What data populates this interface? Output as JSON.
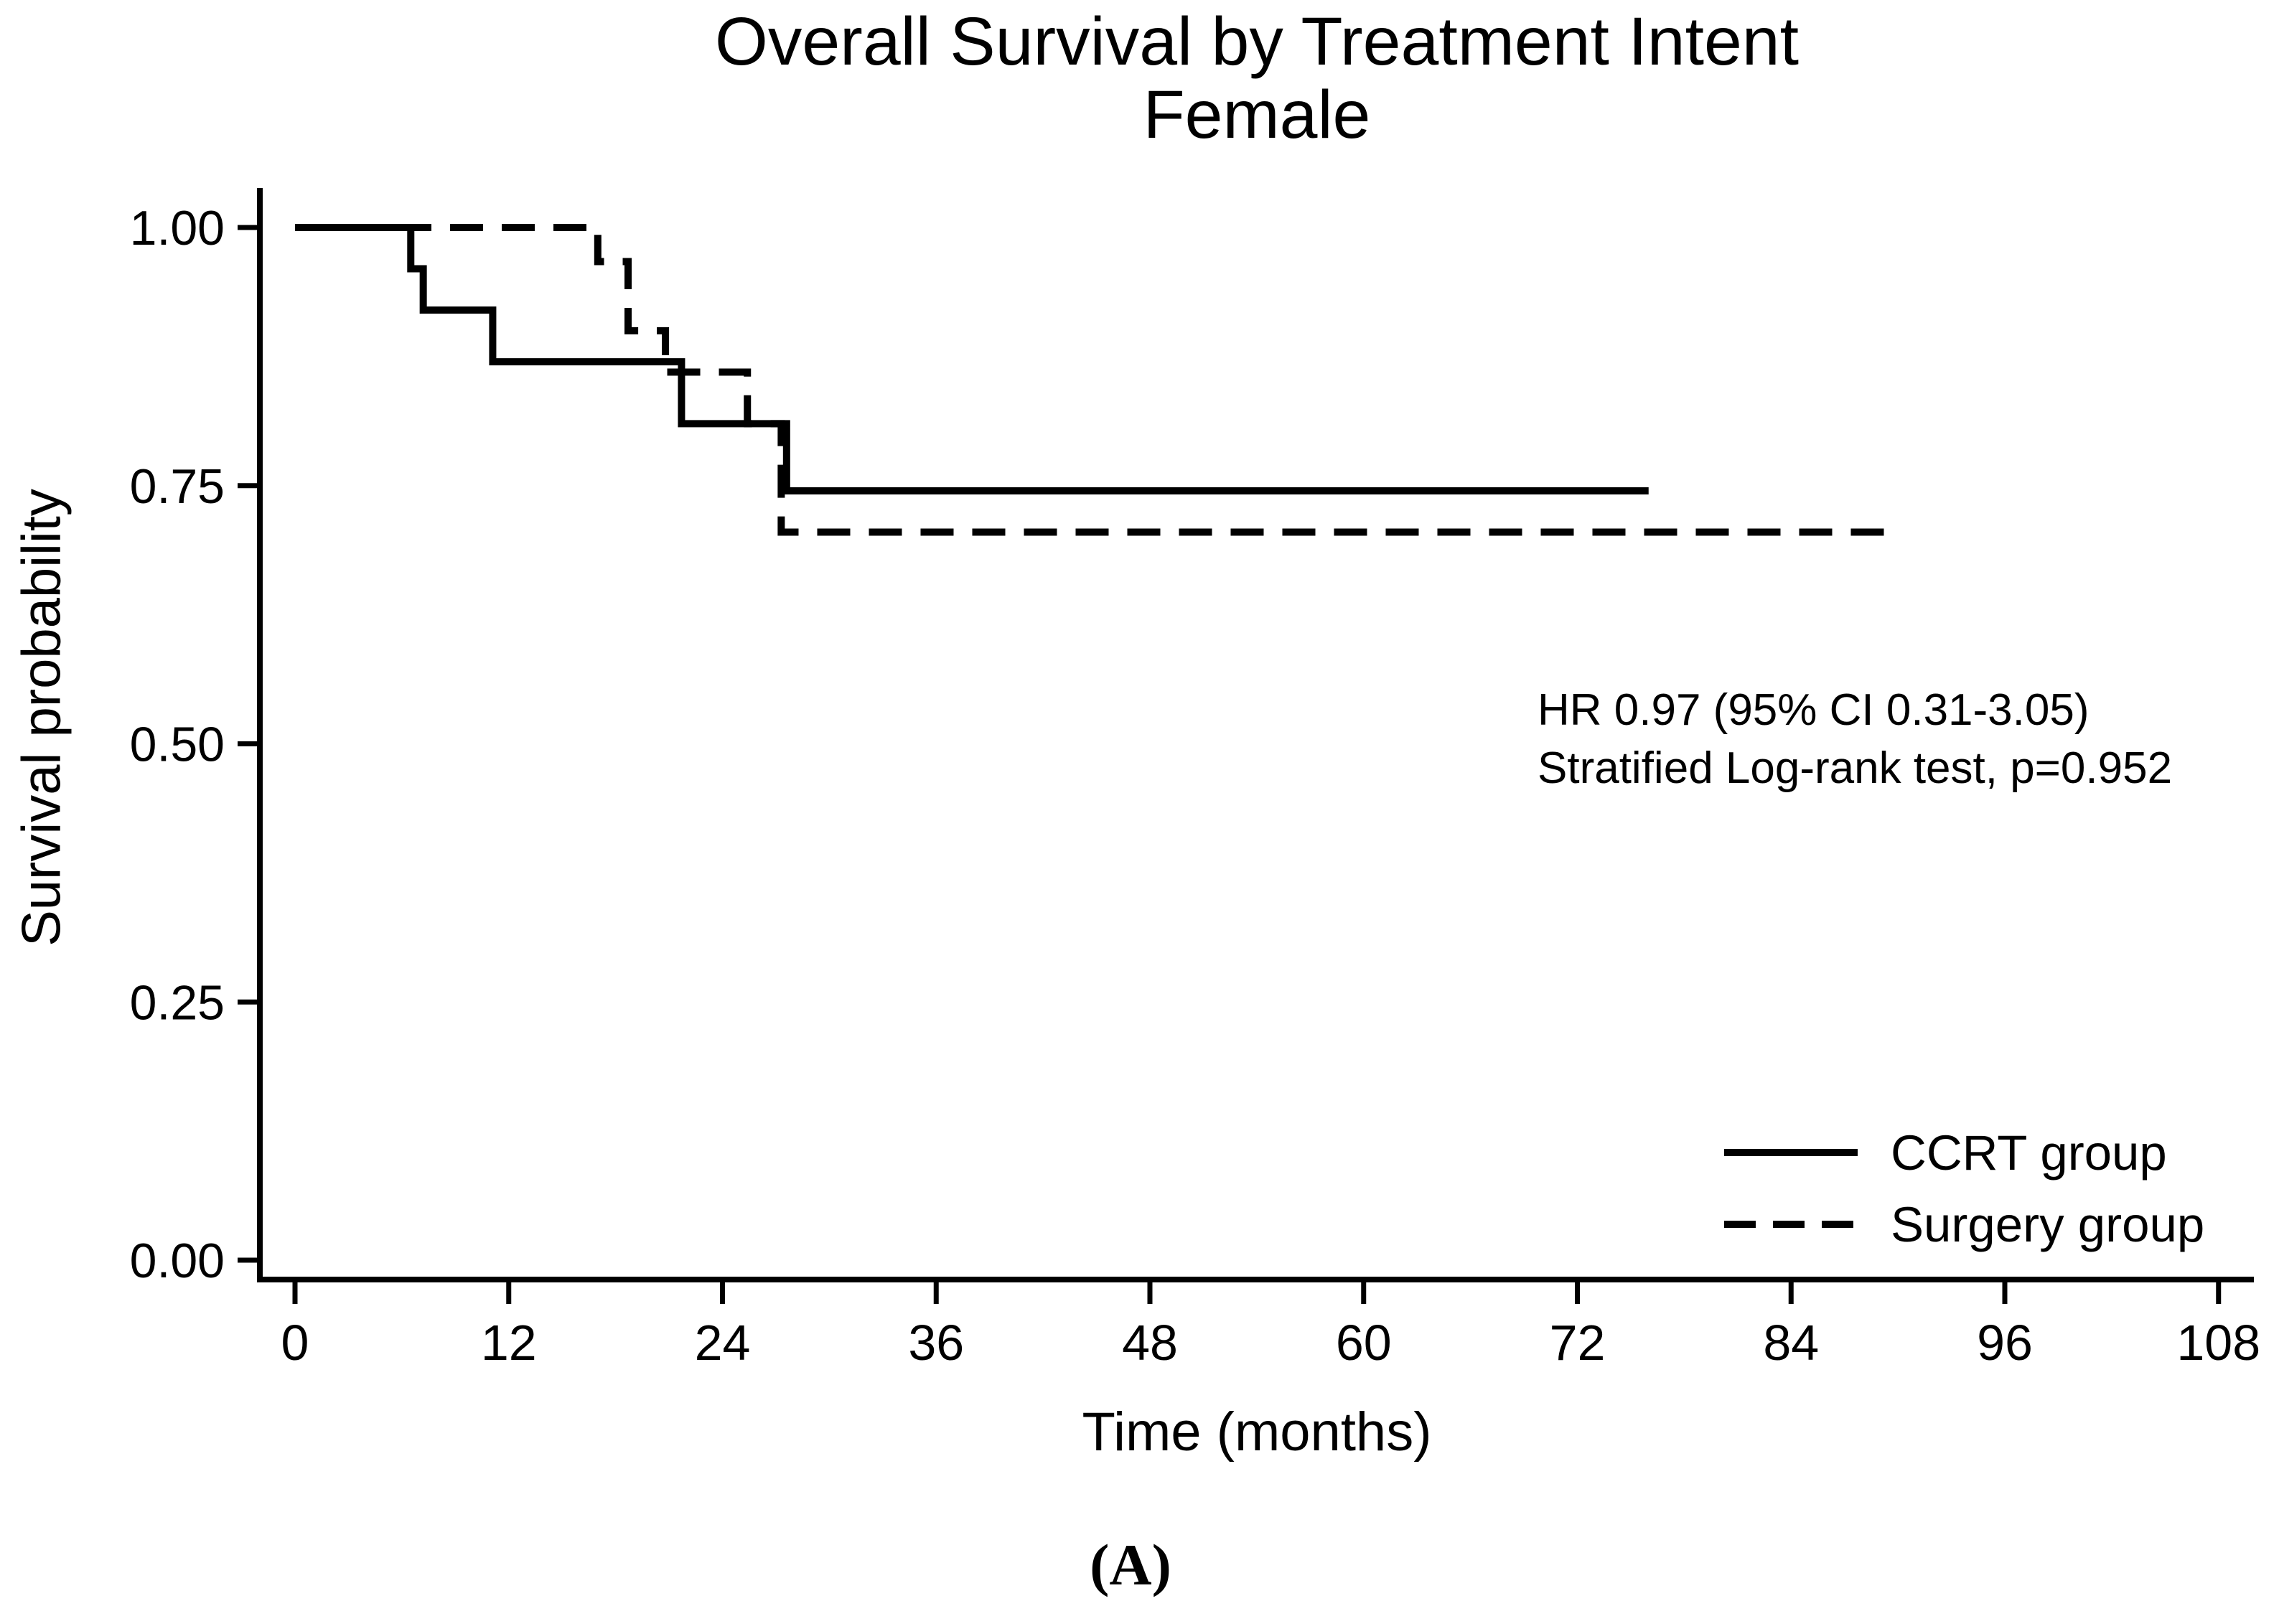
{
  "title": {
    "line1": "Overall Survival by Treatment Intent",
    "line2": "Female"
  },
  "axes": {
    "y_label": "Survival probability",
    "x_label": "Time (months)"
  },
  "annotation": {
    "line1": "HR 0.97 (95% CI 0.31-3.05)",
    "line2": "Stratified Log-rank test, p=0.952"
  },
  "legend": {
    "items": [
      {
        "label": "CCRT group",
        "style": "solid"
      },
      {
        "label": "Surgery group",
        "style": "dashed"
      }
    ]
  },
  "footer": {
    "panel_label": "(A)"
  },
  "colors": {
    "foreground": "#000000",
    "background": "#ffffff"
  },
  "chart_data": {
    "type": "line",
    "subtype": "kaplan-meier-step",
    "title": "Overall Survival by Treatment Intent",
    "subtitle": "Female",
    "xlabel": "Time (months)",
    "ylabel": "Survival probability",
    "xlim": [
      0,
      108
    ],
    "ylim": [
      0,
      1
    ],
    "x_ticks": [
      0,
      12,
      24,
      36,
      48,
      60,
      72,
      84,
      96,
      108
    ],
    "y_ticks": [
      0,
      0.25,
      0.5,
      0.75,
      1
    ],
    "grid": false,
    "legend_position": "bottom-right",
    "annotations": [
      "HR 0.97 (95% CI 0.31-3.05)",
      "Stratified Log-rank test, p=0.952"
    ],
    "series": [
      {
        "name": "CCRT group",
        "line_style": "solid",
        "color": "#000000",
        "steps": [
          [
            0,
            1.0
          ],
          [
            6.5,
            1.0
          ],
          [
            6.5,
            0.96
          ],
          [
            7.2,
            0.96
          ],
          [
            7.2,
            0.92
          ],
          [
            11.1,
            0.92
          ],
          [
            11.1,
            0.87
          ],
          [
            21.7,
            0.87
          ],
          [
            21.7,
            0.81
          ],
          [
            27.6,
            0.81
          ],
          [
            27.6,
            0.745
          ],
          [
            76,
            0.745
          ]
        ]
      },
      {
        "name": "Surgery group",
        "line_style": "dashed",
        "color": "#000000",
        "steps": [
          [
            0,
            1.0
          ],
          [
            17,
            1.0
          ],
          [
            17,
            0.967
          ],
          [
            18.7,
            0.967
          ],
          [
            18.7,
            0.9
          ],
          [
            20.8,
            0.9
          ],
          [
            20.8,
            0.86
          ],
          [
            25.4,
            0.86
          ],
          [
            25.4,
            0.81
          ],
          [
            27.3,
            0.81
          ],
          [
            27.3,
            0.705
          ],
          [
            90,
            0.705
          ]
        ]
      }
    ]
  }
}
